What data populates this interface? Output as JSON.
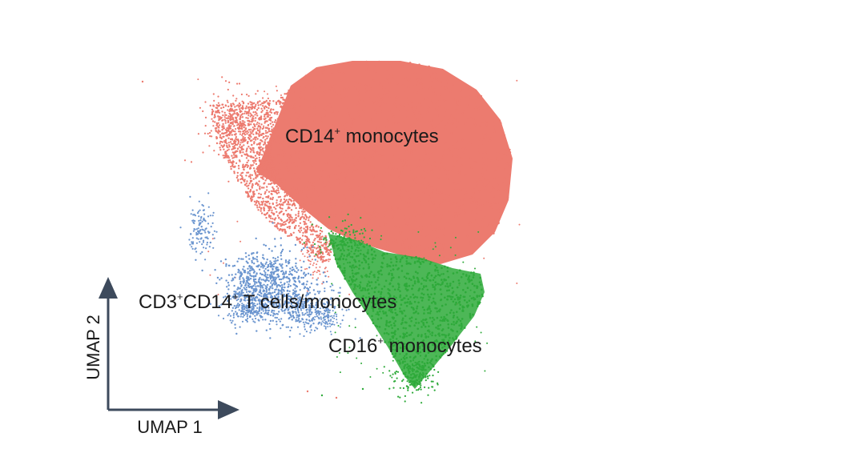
{
  "chart_data": {
    "type": "scatter",
    "title": "",
    "xlabel": "UMAP 1",
    "ylabel": "UMAP 2",
    "grid": false,
    "legend": "none",
    "series": [
      {
        "name": "CD14+ monocytes",
        "label_main": "CD14",
        "label_sup": "+",
        "label_rest": " monocytes",
        "color": "#ec7468",
        "approx_points": 60000
      },
      {
        "name": "CD16+ monocytes",
        "label_main": "CD16",
        "label_sup": "+",
        "label_rest": " monocytes",
        "color": "#2eaa3a",
        "approx_points": 9000
      },
      {
        "name": "CD3+CD14+ T cells/monocytes",
        "label_a": "CD3",
        "label_sup_a": "+",
        "label_b": "CD14",
        "label_sup_b": "+",
        "label_rest": " T cells/monocytes",
        "color": "#6b95cf",
        "approx_points": 2500
      }
    ]
  }
}
